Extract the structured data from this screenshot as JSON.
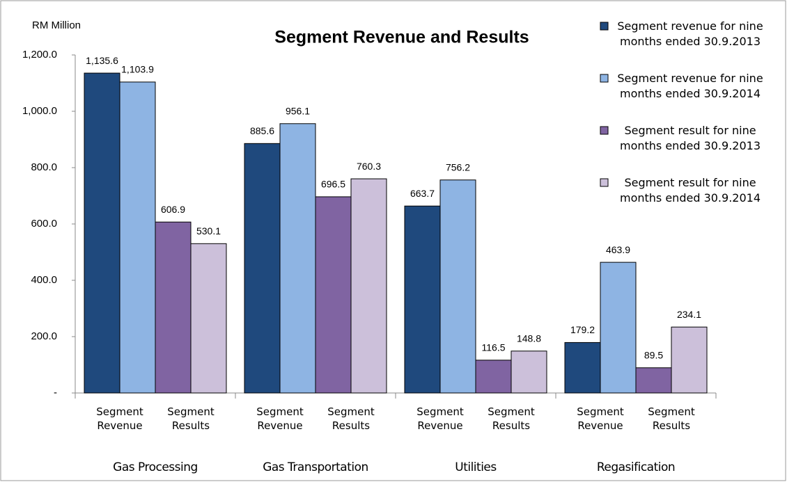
{
  "chart_data": {
    "type": "bar",
    "title": "Segment Revenue and Results",
    "y_axis_label": "RM Million",
    "categories": [
      "Gas Processing",
      "Gas Transportation",
      "Utilities",
      "Regasification"
    ],
    "subcategories": [
      "Segment Revenue",
      "Segment Results"
    ],
    "series": [
      {
        "name": "Segment revenue for nine months ended 30.9.2013",
        "color": "#1f497d",
        "values": [
          1135.6,
          885.6,
          663.7,
          179.2
        ],
        "value_labels": [
          "1,135.6",
          "885.6",
          "663.7",
          "179.2"
        ]
      },
      {
        "name": "Segment revenue for nine months ended 30.9.2014",
        "color": "#8eb4e3",
        "values": [
          1103.9,
          956.1,
          756.2,
          463.9
        ],
        "value_labels": [
          "1,103.9",
          "956.1",
          "756.2",
          "463.9"
        ]
      },
      {
        "name": "Segment result for nine months ended 30.9.2013",
        "color": "#8064a2",
        "values": [
          606.9,
          696.5,
          116.5,
          89.5
        ],
        "value_labels": [
          "606.9",
          "696.5",
          "116.5",
          "89.5"
        ]
      },
      {
        "name": "Segment result for nine months ended 30.9.2014",
        "color": "#ccc0da",
        "values": [
          530.1,
          760.3,
          148.8,
          234.1
        ],
        "value_labels": [
          "530.1",
          "760.3",
          "148.8",
          "234.1"
        ]
      }
    ],
    "ylim": [
      0,
      1200
    ],
    "yticks": [
      {
        "value": 0,
        "label": "-"
      },
      {
        "value": 200,
        "label": "200.0"
      },
      {
        "value": 400,
        "label": "400.0"
      },
      {
        "value": 600,
        "label": "600.0"
      },
      {
        "value": 800,
        "label": "800.0"
      },
      {
        "value": 1000,
        "label": "1,000.0"
      },
      {
        "value": 1200,
        "label": "1,200.0"
      }
    ],
    "grid": false,
    "legend": "right"
  }
}
